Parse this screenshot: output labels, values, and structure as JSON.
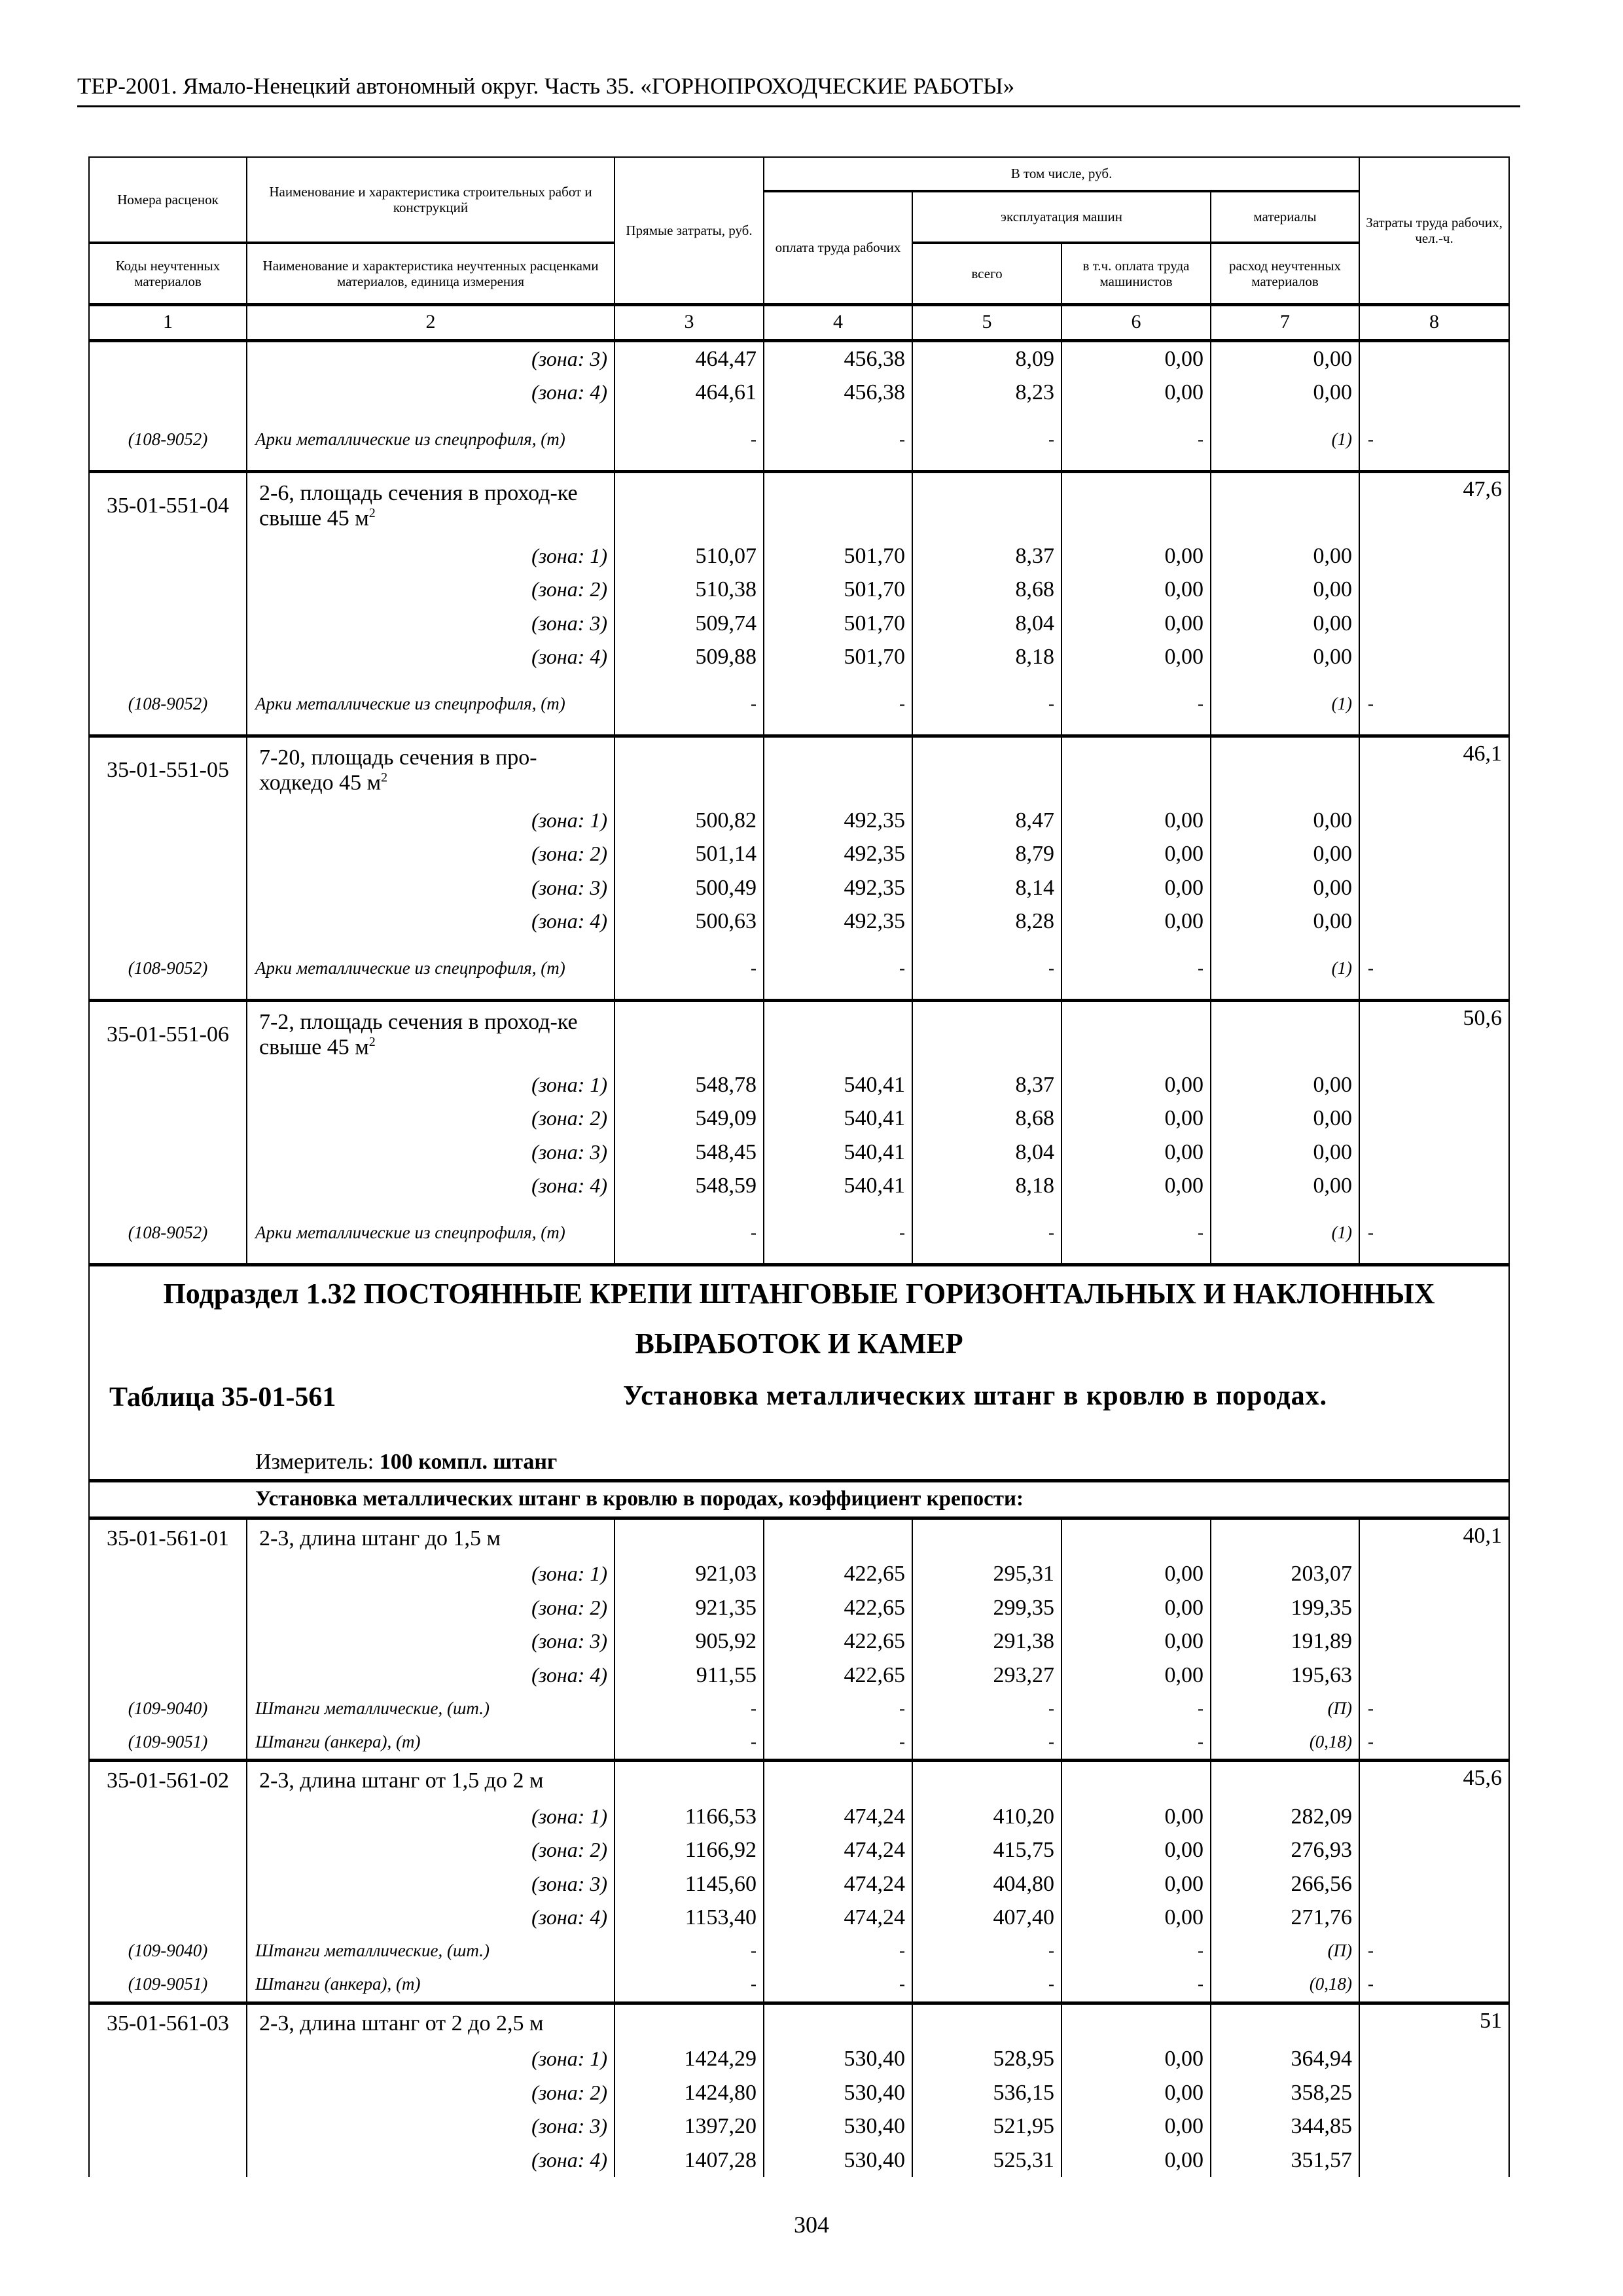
{
  "running_header": "ТЕР-2001. Ямало-Ненецкий автономный округ. Часть 35. «ГОРНОПРОХОДЧЕСКИЕ РАБОТЫ»",
  "page_number": "304",
  "table_header": {
    "col1_top": "Номера расценок",
    "col2_top": "Наименование и характеристика строительных работ и конструкций",
    "col1_bottom": "Коды неучтенных материалов",
    "col2_bottom": "Наименование и характеристика неучтенных расценками материалов, единица измерения",
    "col3": "Прямые затраты, руб.",
    "incl": "В том числе, руб.",
    "col4": "оплата труда рабочих",
    "machines": "эксплуатация машин",
    "col5": "всего",
    "col6": "в т.ч. оплата труда машинистов",
    "materials": "материалы",
    "col7": "расход неучтенных материалов",
    "col8": "Затраты труда рабочих, чел.-ч.",
    "numbers": [
      "1",
      "2",
      "3",
      "4",
      "5",
      "6",
      "7",
      "8"
    ]
  },
  "part1": [
    {
      "code": "",
      "title": "",
      "sup": "",
      "labor": "",
      "zones": [
        {
          "label": "(зона: 3)",
          "vals": [
            "464,47",
            "456,38",
            "8,09",
            "0,00",
            "0,00"
          ]
        },
        {
          "label": "(зона: 4)",
          "vals": [
            "464,61",
            "456,38",
            "8,23",
            "0,00",
            "0,00"
          ]
        }
      ],
      "materials": [
        {
          "code": "(108-9052)",
          "name": "Арки металлические из спецпрофиля, (т)",
          "vals": [
            "-",
            "-",
            "-",
            "-",
            "(1)"
          ],
          "labor": "-"
        }
      ]
    },
    {
      "code": "35-01-551-04",
      "title": "2-6, площадь сечения в проход-ке свыше 45 м",
      "sup": "2",
      "labor": "47,6",
      "zones": [
        {
          "label": "(зона: 1)",
          "vals": [
            "510,07",
            "501,70",
            "8,37",
            "0,00",
            "0,00"
          ]
        },
        {
          "label": "(зона: 2)",
          "vals": [
            "510,38",
            "501,70",
            "8,68",
            "0,00",
            "0,00"
          ]
        },
        {
          "label": "(зона: 3)",
          "vals": [
            "509,74",
            "501,70",
            "8,04",
            "0,00",
            "0,00"
          ]
        },
        {
          "label": "(зона: 4)",
          "vals": [
            "509,88",
            "501,70",
            "8,18",
            "0,00",
            "0,00"
          ]
        }
      ],
      "materials": [
        {
          "code": "(108-9052)",
          "name": "Арки металлические из спецпрофиля, (т)",
          "vals": [
            "-",
            "-",
            "-",
            "-",
            "(1)"
          ],
          "labor": "-"
        }
      ]
    },
    {
      "code": "35-01-551-05",
      "title": "7-20, площадь сечения в про-ходкедо 45 м",
      "sup": "2",
      "labor": "46,1",
      "zones": [
        {
          "label": "(зона: 1)",
          "vals": [
            "500,82",
            "492,35",
            "8,47",
            "0,00",
            "0,00"
          ]
        },
        {
          "label": "(зона: 2)",
          "vals": [
            "501,14",
            "492,35",
            "8,79",
            "0,00",
            "0,00"
          ]
        },
        {
          "label": "(зона: 3)",
          "vals": [
            "500,49",
            "492,35",
            "8,14",
            "0,00",
            "0,00"
          ]
        },
        {
          "label": "(зона: 4)",
          "vals": [
            "500,63",
            "492,35",
            "8,28",
            "0,00",
            "0,00"
          ]
        }
      ],
      "materials": [
        {
          "code": "(108-9052)",
          "name": "Арки металлические из спецпрофиля, (т)",
          "vals": [
            "-",
            "-",
            "-",
            "-",
            "(1)"
          ],
          "labor": "-"
        }
      ]
    },
    {
      "code": "35-01-551-06",
      "title": "7-2, площадь сечения в проход-ке свыше 45 м",
      "sup": "2",
      "labor": "50,6",
      "zones": [
        {
          "label": "(зона: 1)",
          "vals": [
            "548,78",
            "540,41",
            "8,37",
            "0,00",
            "0,00"
          ]
        },
        {
          "label": "(зона: 2)",
          "vals": [
            "549,09",
            "540,41",
            "8,68",
            "0,00",
            "0,00"
          ]
        },
        {
          "label": "(зона: 3)",
          "vals": [
            "548,45",
            "540,41",
            "8,04",
            "0,00",
            "0,00"
          ]
        },
        {
          "label": "(зона: 4)",
          "vals": [
            "548,59",
            "540,41",
            "8,18",
            "0,00",
            "0,00"
          ]
        }
      ],
      "materials": [
        {
          "code": "(108-9052)",
          "name": "Арки металлические из спецпрофиля, (т)",
          "vals": [
            "-",
            "-",
            "-",
            "-",
            "(1)"
          ],
          "labor": "-"
        }
      ]
    }
  ],
  "section": {
    "title": "Подраздел 1.32 ПОСТОЯННЫЕ КРЕПИ ШТАНГОВЫЕ ГОРИЗОНТАЛЬНЫХ И НАКЛОННЫХ ВЫРАБОТОК И КАМЕР",
    "table_no": "Таблица 35-01-561",
    "table_title": "Установка металлических штанг в кровлю в породах.",
    "meter_label": "Измеритель:",
    "meter_value": "100 компл. штанг",
    "subheading": "Установка металлических штанг в кровлю в породах, коэффициент крепости:"
  },
  "part2": [
    {
      "code": "35-01-561-01",
      "title": "2-3, длина штанг до 1,5 м",
      "sup": "",
      "labor": "40,1",
      "zones": [
        {
          "label": "(зона: 1)",
          "vals": [
            "921,03",
            "422,65",
            "295,31",
            "0,00",
            "203,07"
          ]
        },
        {
          "label": "(зона: 2)",
          "vals": [
            "921,35",
            "422,65",
            "299,35",
            "0,00",
            "199,35"
          ]
        },
        {
          "label": "(зона: 3)",
          "vals": [
            "905,92",
            "422,65",
            "291,38",
            "0,00",
            "191,89"
          ]
        },
        {
          "label": "(зона: 4)",
          "vals": [
            "911,55",
            "422,65",
            "293,27",
            "0,00",
            "195,63"
          ]
        }
      ],
      "materials": [
        {
          "code": "(109-9040)",
          "name": "Штанги металлические, (шт.)",
          "vals": [
            "-",
            "-",
            "-",
            "-",
            "(П)"
          ],
          "labor": "-"
        },
        {
          "code": "(109-9051)",
          "name": "Штанги (анкера), (т)",
          "vals": [
            "-",
            "-",
            "-",
            "-",
            "(0,18)"
          ],
          "labor": "-"
        }
      ]
    },
    {
      "code": "35-01-561-02",
      "title": "2-3, длина штанг от 1,5 до 2 м",
      "sup": "",
      "labor": "45,6",
      "zones": [
        {
          "label": "(зона: 1)",
          "vals": [
            "1166,53",
            "474,24",
            "410,20",
            "0,00",
            "282,09"
          ]
        },
        {
          "label": "(зона: 2)",
          "vals": [
            "1166,92",
            "474,24",
            "415,75",
            "0,00",
            "276,93"
          ]
        },
        {
          "label": "(зона: 3)",
          "vals": [
            "1145,60",
            "474,24",
            "404,80",
            "0,00",
            "266,56"
          ]
        },
        {
          "label": "(зона: 4)",
          "vals": [
            "1153,40",
            "474,24",
            "407,40",
            "0,00",
            "271,76"
          ]
        }
      ],
      "materials": [
        {
          "code": "(109-9040)",
          "name": "Штанги металлические, (шт.)",
          "vals": [
            "-",
            "-",
            "-",
            "-",
            "(П)"
          ],
          "labor": "-"
        },
        {
          "code": "(109-9051)",
          "name": "Штанги (анкера), (т)",
          "vals": [
            "-",
            "-",
            "-",
            "-",
            "(0,18)"
          ],
          "labor": "-"
        }
      ]
    },
    {
      "code": "35-01-561-03",
      "title": "2-3, длина штанг от 2 до 2,5 м",
      "sup": "",
      "labor": "51",
      "zones": [
        {
          "label": "(зона: 1)",
          "vals": [
            "1424,29",
            "530,40",
            "528,95",
            "0,00",
            "364,94"
          ]
        },
        {
          "label": "(зона: 2)",
          "vals": [
            "1424,80",
            "530,40",
            "536,15",
            "0,00",
            "358,25"
          ]
        },
        {
          "label": "(зона: 3)",
          "vals": [
            "1397,20",
            "530,40",
            "521,95",
            "0,00",
            "344,85"
          ]
        },
        {
          "label": "(зона: 4)",
          "vals": [
            "1407,28",
            "530,40",
            "525,31",
            "0,00",
            "351,57"
          ]
        }
      ],
      "materials": []
    }
  ]
}
